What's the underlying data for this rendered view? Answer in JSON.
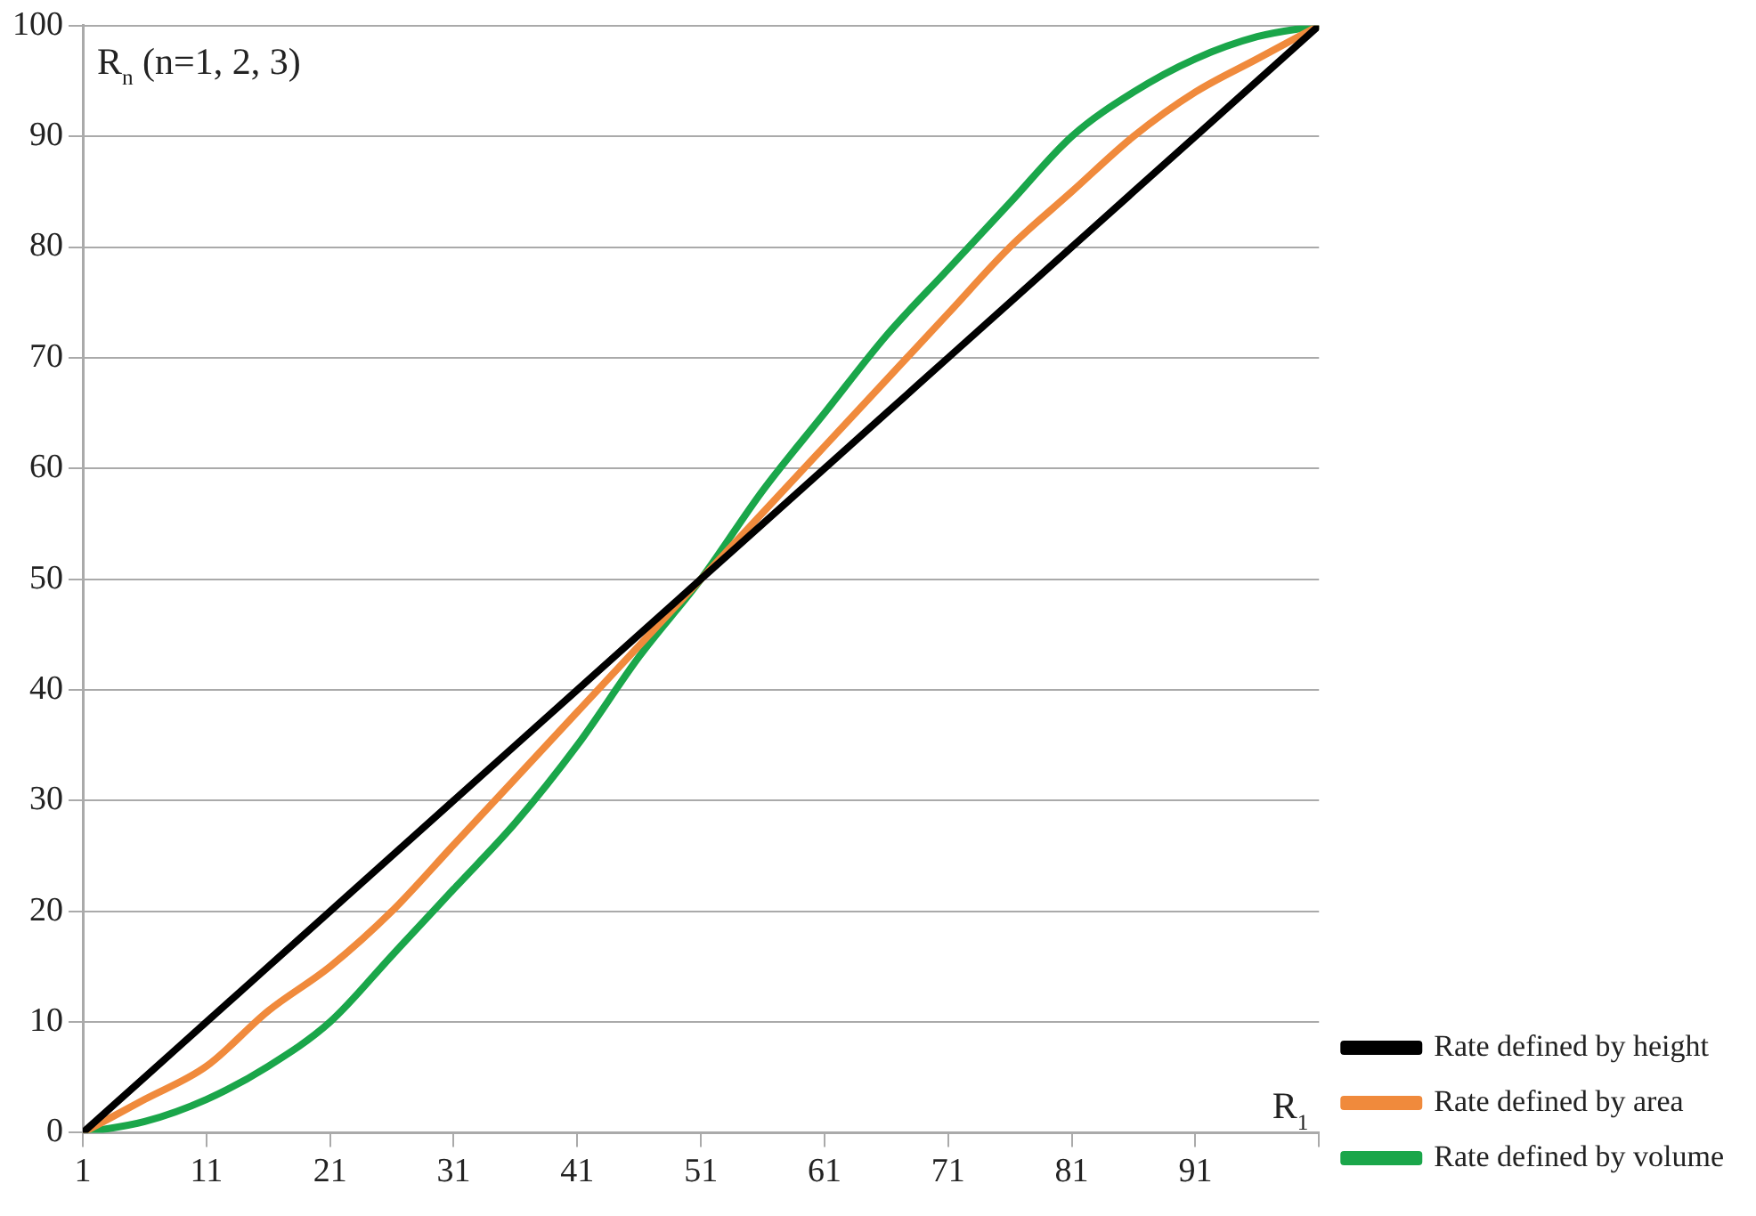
{
  "chart_data": {
    "type": "line",
    "xlabel": "R$_{1}$",
    "ylabel": "R$_{n}$ (n=1, 2, 3)",
    "x": [
      1,
      6,
      11,
      16,
      21,
      26,
      31,
      36,
      41,
      46,
      51,
      56,
      61,
      66,
      71,
      76,
      81,
      86,
      91,
      96,
      101
    ],
    "xlim": [
      1,
      101
    ],
    "xticks": [
      1,
      11,
      21,
      31,
      41,
      51,
      61,
      71,
      81,
      91,
      {
        "value": 101,
        "label": null
      }
    ],
    "ylim": [
      0,
      100
    ],
    "yticks": [
      0,
      10,
      20,
      30,
      40,
      50,
      60,
      70,
      80,
      90,
      100
    ],
    "series": [
      {
        "name": "Rate defined by height",
        "color": "#000000",
        "values": [
          0,
          5,
          10,
          15,
          20,
          25,
          30,
          35,
          40,
          45,
          50,
          55,
          60,
          65,
          70,
          75,
          80,
          85,
          90,
          95,
          100
        ]
      },
      {
        "name": "Rate defined by area",
        "color": "#f08a3c",
        "values": [
          0,
          3,
          6,
          11,
          15,
          20,
          26,
          32,
          38,
          44,
          50,
          56,
          62,
          68,
          74,
          80,
          85,
          90,
          94,
          97,
          100
        ]
      },
      {
        "name": "Rate defined by volume",
        "color": "#1aa64a",
        "values": [
          0,
          1,
          3,
          6,
          10,
          16,
          22,
          28,
          35,
          43,
          50,
          58,
          65,
          72,
          78,
          84,
          90,
          94,
          97,
          99,
          100
        ]
      }
    ],
    "grid": "y",
    "legend": "bottom right",
    "marker": "none",
    "line_style": "solid"
  }
}
